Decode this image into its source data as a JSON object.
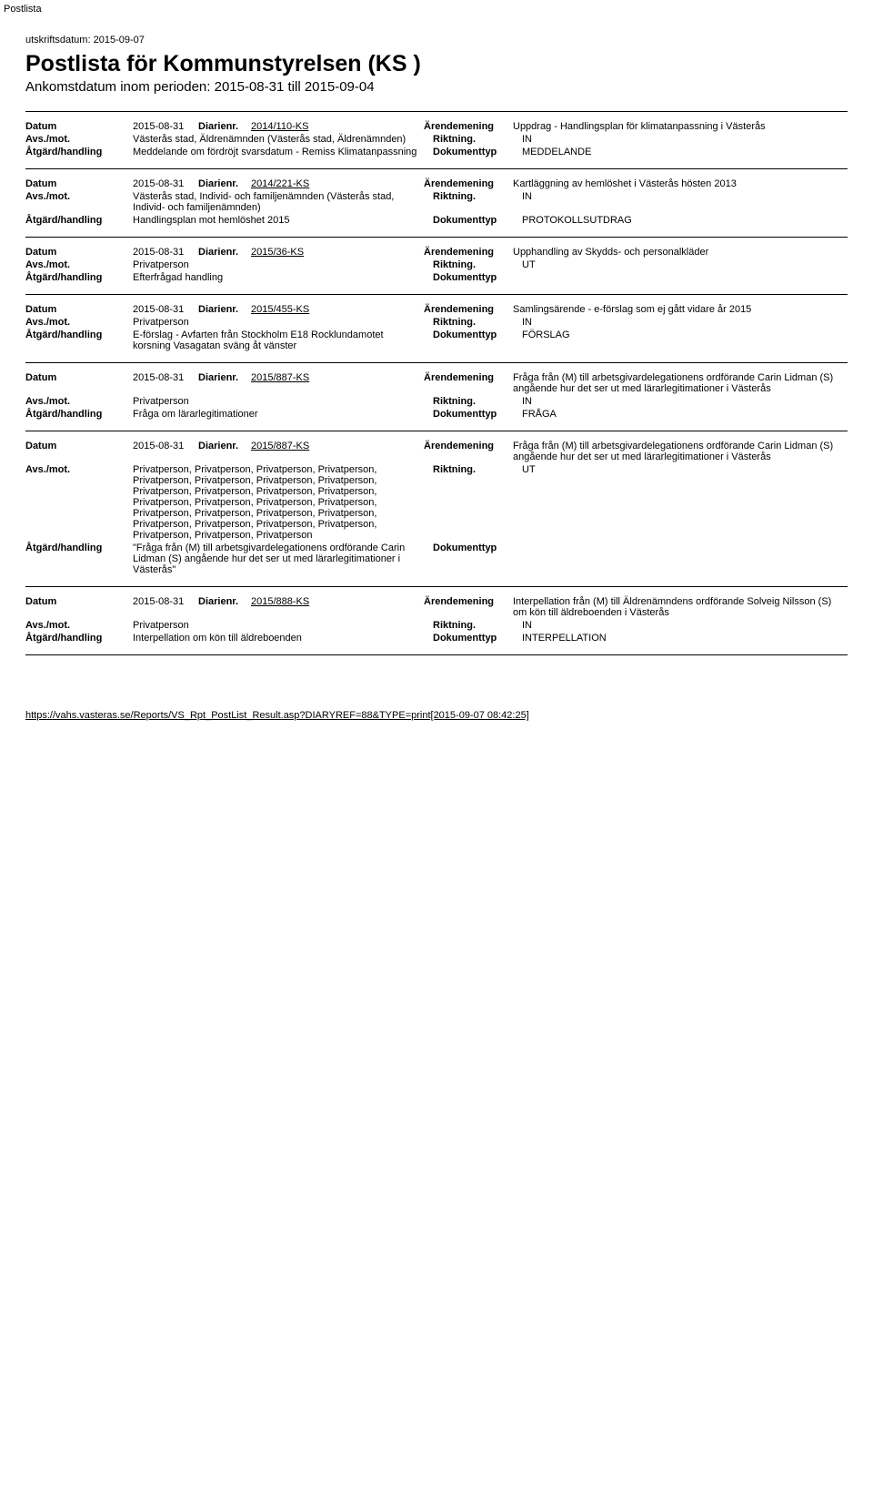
{
  "cornerLabel": "Postlista",
  "printDateLabel": "utskriftsdatum:",
  "printDate": "2015-09-07",
  "pageTitle": "Postlista för Kommunstyrelsen (KS )",
  "subtitle": "Ankomstdatum inom perioden: 2015-08-31  till 2015-09-04",
  "labels": {
    "datum": "Datum",
    "diarienr": "Diarienr.",
    "arende": "Ärendemening",
    "avs": "Avs./mot.",
    "riktning": "Riktning.",
    "atgard": "Åtgärd/handling",
    "doktyp": "Dokumenttyp"
  },
  "entries": [
    {
      "datum": "2015-08-31",
      "diarienr": "2014/110-KS",
      "arende": "Uppdrag - Handlingsplan för klimatanpassning i Västerås",
      "avs": "Västerås stad, Äldrenämnden (Västerås stad, Äldrenämnden)",
      "riktning": "IN",
      "atgard": "Meddelande om fördröjt svarsdatum - Remiss Klimatanpassning",
      "doktyp": "MEDDELANDE"
    },
    {
      "datum": "2015-08-31",
      "diarienr": "2014/221-KS",
      "arende": "Kartläggning av hemlöshet i Västerås hösten 2013",
      "avs": "Västerås stad, Individ- och familjenämnden (Västerås stad, Individ- och familjenämnden)",
      "riktning": "IN",
      "atgard": "Handlingsplan mot hemlöshet 2015",
      "doktyp": "PROTOKOLLSUTDRAG"
    },
    {
      "datum": "2015-08-31",
      "diarienr": "2015/36-KS",
      "arende": "Upphandling av Skydds- och personalkläder",
      "avs": "Privatperson",
      "riktning": "UT",
      "atgard": "Efterfrågad handling",
      "doktyp": ""
    },
    {
      "datum": "2015-08-31",
      "diarienr": "2015/455-KS",
      "arende": "Samlingsärende - e-förslag som ej gått vidare år 2015",
      "avs": "Privatperson",
      "riktning": "IN",
      "atgard": "E-förslag - Avfarten från Stockholm E18 Rocklundamotet korsning Vasagatan sväng åt vänster",
      "doktyp": "FÖRSLAG"
    },
    {
      "datum": "2015-08-31",
      "diarienr": "2015/887-KS",
      "arende": "Fråga från (M) till arbetsgivardelegationens ordförande Carin Lidman (S) angående hur det ser ut med lärarlegitimationer i Västerås",
      "avs": "Privatperson",
      "riktning": "IN",
      "atgard": "Fråga om lärarlegitimationer",
      "doktyp": "FRÅGA"
    },
    {
      "datum": "2015-08-31",
      "diarienr": "2015/887-KS",
      "arende": "Fråga från (M) till arbetsgivardelegationens ordförande Carin Lidman (S) angående hur det ser ut med lärarlegitimationer i Västerås",
      "avs": "Privatperson, Privatperson, Privatperson, Privatperson, Privatperson, Privatperson, Privatperson, Privatperson, Privatperson, Privatperson, Privatperson, Privatperson, Privatperson, Privatperson, Privatperson, Privatperson, Privatperson, Privatperson, Privatperson, Privatperson, Privatperson, Privatperson, Privatperson, Privatperson, Privatperson, Privatperson, Privatperson",
      "riktning": "UT",
      "atgard": "\"Fråga från (M) till arbetsgivardelegationens ordförande Carin Lidman (S) angående hur det ser ut med lärarlegitimationer i Västerås\"",
      "doktyp": ""
    },
    {
      "datum": "2015-08-31",
      "diarienr": "2015/888-KS",
      "arende": "Interpellation från (M) till Äldrenämndens ordförande Solveig Nilsson (S) om kön till äldreboenden i Västerås",
      "avs": "Privatperson",
      "riktning": "IN",
      "atgard": "Interpellation om kön till äldreboenden",
      "doktyp": "INTERPELLATION"
    }
  ],
  "footerUrl": "https://vahs.vasteras.se/Reports/VS_Rpt_PostList_Result.asp?DIARYREF=88&TYPE=print[2015-09-07 08:42:25]"
}
